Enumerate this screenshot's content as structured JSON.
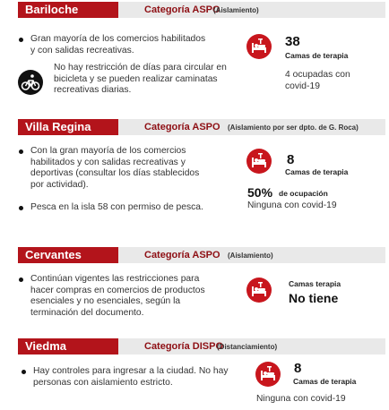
{
  "sections": [
    {
      "city": "Bariloche",
      "category": "Categoría ASPO",
      "note": "(Aislamiento)",
      "bullets": [
        "Gran mayoría de los comercios habilitados y con salidas recreativas."
      ],
      "bike_note": "No hay restricción de días para circular en bicicleta y se pueden realizar caminatas recreativas diarias.",
      "beds": "38",
      "beds_label": "Camas de terapia",
      "status": "4 ocupadas con covid-19"
    },
    {
      "city": "Villa Regina",
      "category": "Categoría ASPO",
      "note": "(Aislamiento por ser dpto. de G. Roca)",
      "bullets": [
        "Con la gran mayoría de los comercios habilitados y con salidas recreativas y deportivas (consultar los días stablecidos por actividad).",
        "Pesca en la isla 58 con permiso de pesca."
      ],
      "beds": "8",
      "beds_label": "Camas de terapia",
      "occupancy_value": "50%",
      "occupancy_label": "de ocupación",
      "status": "Ninguna con covid-19"
    },
    {
      "city": "Cervantes",
      "category": "Categoría ASPO",
      "note": "(Aislamiento)",
      "bullets": [
        "Continúan vigentes las restricciones para hacer compras en comercios de productos esenciales y no esenciales, según la terminación del documento."
      ],
      "beds_label": "Camas terapia",
      "beds": "No tiene"
    },
    {
      "city": "Viedma",
      "category": "Categoría DISPO",
      "note": "(Distanciamiento)",
      "bullets": [
        "Hay controles para ingresar a la ciudad. No hay personas con aislamiento estricto."
      ],
      "beds": "8",
      "beds_label": "Camas de terapia",
      "status": "Ninguna con covid-19"
    }
  ]
}
